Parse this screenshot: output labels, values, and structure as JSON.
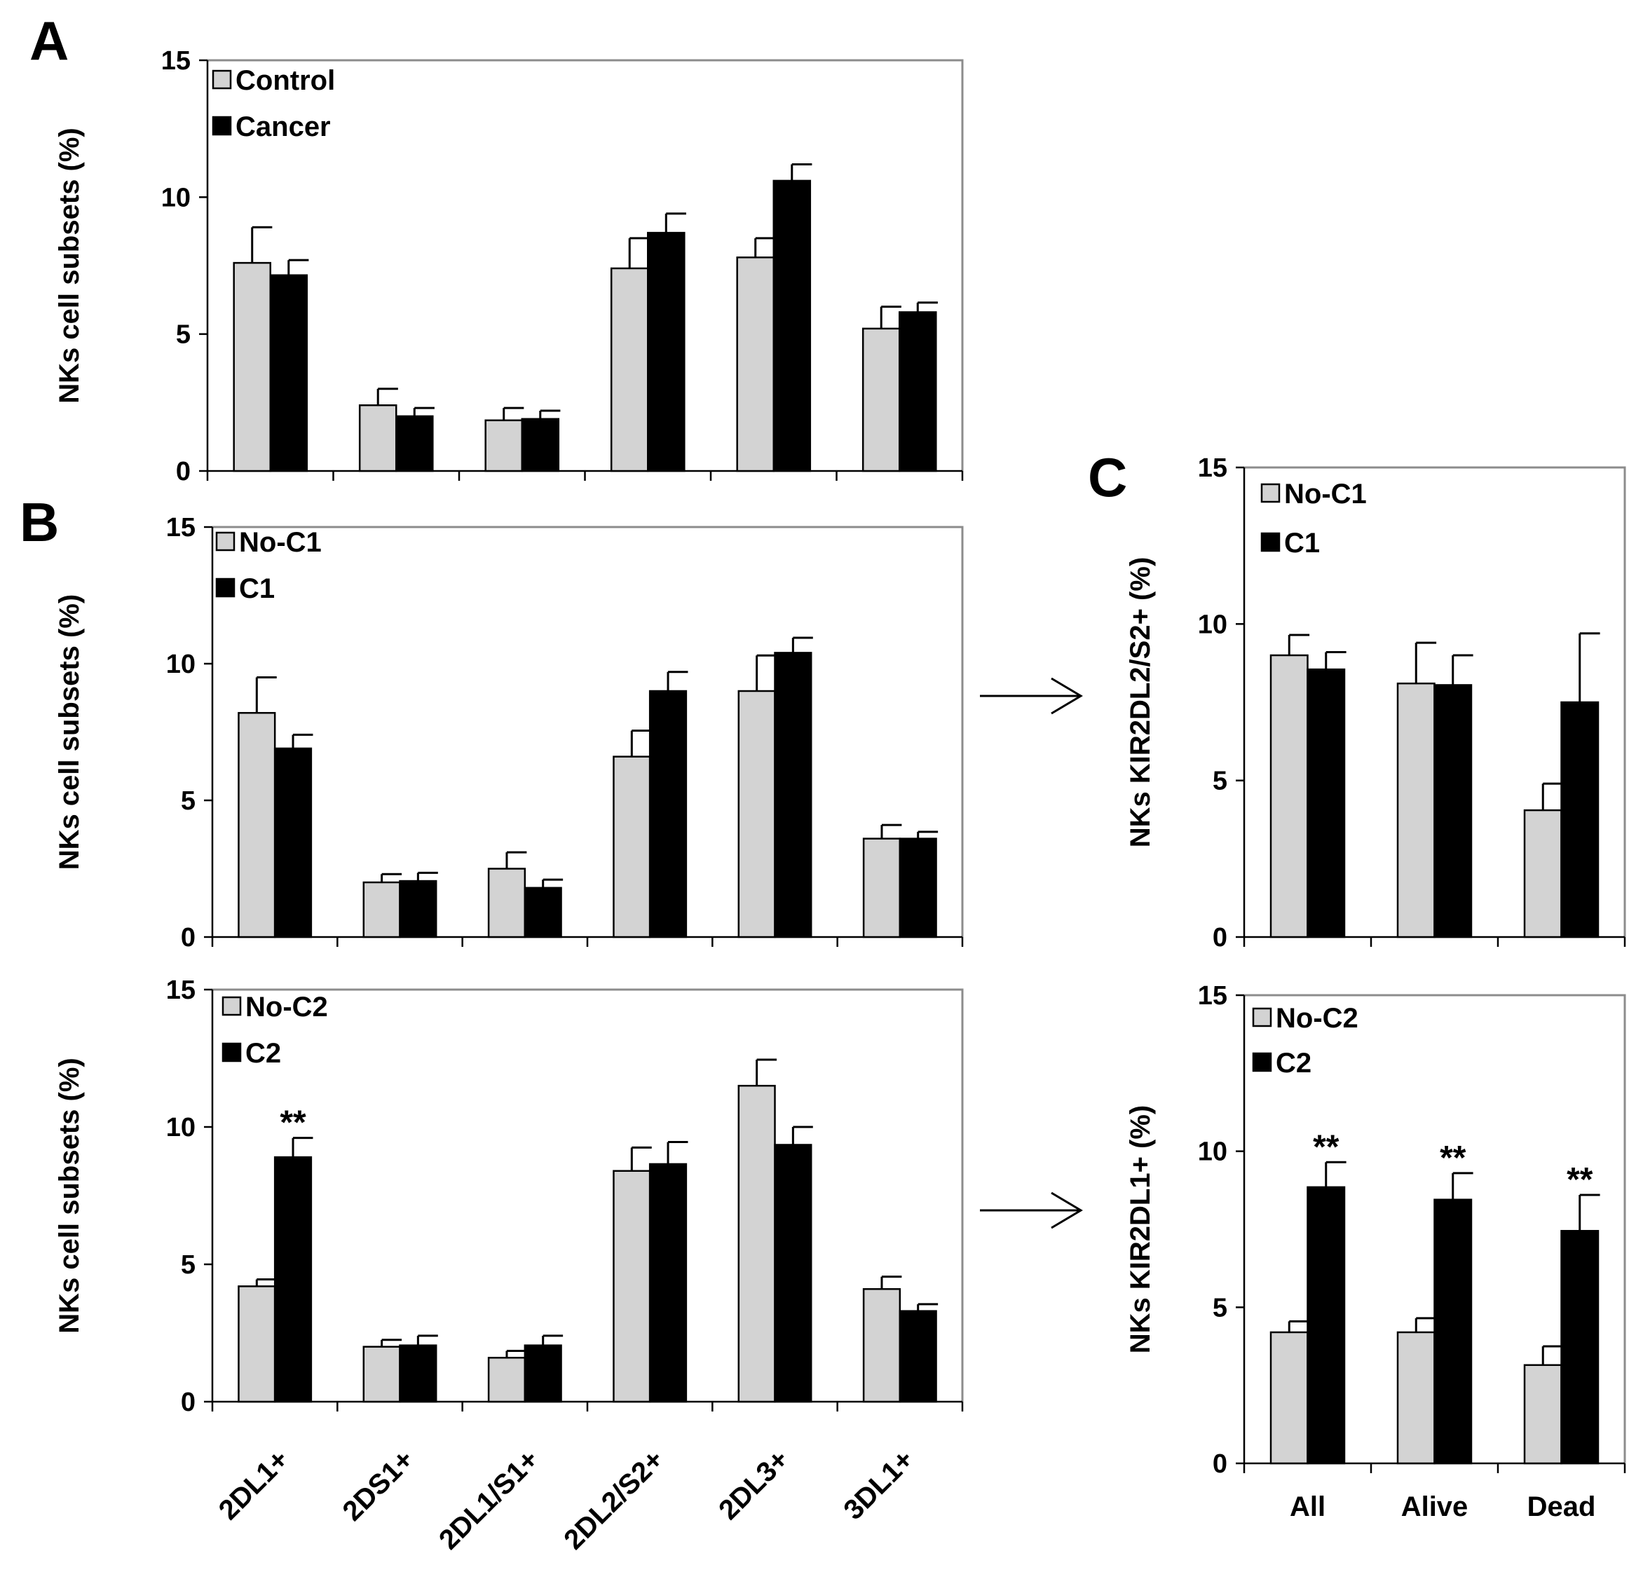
{
  "figure": {
    "panels": [
      {
        "id": "A",
        "label": "A"
      },
      {
        "id": "B",
        "label": "B"
      },
      {
        "id": "C",
        "label": "C"
      }
    ]
  },
  "chart_data": [
    {
      "id": "A",
      "type": "bar",
      "ylabel": "NKs cell subsets (%)",
      "ylim": [
        0,
        15
      ],
      "yticks": [
        0,
        5,
        10,
        15
      ],
      "categories": [
        "2DL1+",
        "2DS1+",
        "2DL1/S1+",
        "2DL2/S2+",
        "2DL3+",
        "3DL1+"
      ],
      "show_category_labels": false,
      "legend_position": "top-left",
      "series": [
        {
          "name": "Control",
          "color": "#d3d3d3",
          "values": [
            7.6,
            2.4,
            1.85,
            7.4,
            7.8,
            5.2
          ],
          "errors": [
            1.3,
            0.6,
            0.45,
            1.1,
            0.7,
            0.8
          ]
        },
        {
          "name": "Cancer",
          "color": "#000000",
          "values": [
            7.15,
            2.0,
            1.9,
            8.7,
            10.6,
            5.8
          ],
          "errors": [
            0.55,
            0.3,
            0.3,
            0.7,
            0.6,
            0.35
          ]
        }
      ],
      "annotations": []
    },
    {
      "id": "B-top",
      "type": "bar",
      "ylabel": "NKs cell subsets (%)",
      "ylim": [
        0,
        15
      ],
      "yticks": [
        0,
        5,
        10,
        15
      ],
      "categories": [
        "2DL1+",
        "2DS1+",
        "2DL1/S1+",
        "2DL2/S2+",
        "2DL3+",
        "3DL1+"
      ],
      "show_category_labels": false,
      "legend_position": "top-left",
      "series": [
        {
          "name": "No-C1",
          "color": "#d3d3d3",
          "values": [
            8.2,
            2.0,
            2.5,
            6.6,
            9.0,
            3.6
          ],
          "errors": [
            1.3,
            0.3,
            0.6,
            0.95,
            1.3,
            0.5
          ]
        },
        {
          "name": "C1",
          "color": "#000000",
          "values": [
            6.9,
            2.05,
            1.8,
            9.0,
            10.4,
            3.6
          ],
          "errors": [
            0.5,
            0.3,
            0.3,
            0.7,
            0.55,
            0.25
          ]
        }
      ],
      "annotations": []
    },
    {
      "id": "B-bottom",
      "type": "bar",
      "ylabel": "NKs cell subsets (%)",
      "ylim": [
        0,
        15
      ],
      "yticks": [
        0,
        5,
        10,
        15
      ],
      "categories": [
        "2DL1+",
        "2DS1+",
        "2DL1/S1+",
        "2DL2/S2+",
        "2DL3+",
        "3DL1+"
      ],
      "show_category_labels": true,
      "legend_position": "top-left",
      "series": [
        {
          "name": "No-C2",
          "color": "#d3d3d3",
          "values": [
            4.2,
            2.0,
            1.6,
            8.4,
            11.5,
            4.1
          ],
          "errors": [
            0.25,
            0.25,
            0.25,
            0.85,
            0.95,
            0.45
          ]
        },
        {
          "name": "C2",
          "color": "#000000",
          "values": [
            8.9,
            2.05,
            2.05,
            8.65,
            9.35,
            3.3
          ],
          "errors": [
            0.7,
            0.35,
            0.35,
            0.8,
            0.65,
            0.25
          ]
        }
      ],
      "annotations": [
        {
          "category_index": 0,
          "text": "**"
        }
      ]
    },
    {
      "id": "C-top",
      "type": "bar",
      "ylabel": "NKs KIR2DL2/S2+ (%)",
      "ylim": [
        0,
        15
      ],
      "yticks": [
        0,
        5,
        10,
        15
      ],
      "categories": [
        "All",
        "Alive",
        "Dead"
      ],
      "show_category_labels": false,
      "legend_position": "top-left",
      "series": [
        {
          "name": "No-C1",
          "color": "#d3d3d3",
          "values": [
            9.0,
            8.1,
            4.05
          ],
          "errors": [
            0.65,
            1.3,
            0.85
          ]
        },
        {
          "name": "C1",
          "color": "#000000",
          "values": [
            8.55,
            8.05,
            7.5
          ],
          "errors": [
            0.55,
            0.95,
            2.2
          ]
        }
      ],
      "annotations": []
    },
    {
      "id": "C-bottom",
      "type": "bar",
      "ylabel": "NKs KIR2DL1+ (%)",
      "ylim": [
        0,
        15
      ],
      "yticks": [
        0,
        5,
        10,
        15
      ],
      "categories": [
        "All",
        "Alive",
        "Dead"
      ],
      "show_category_labels": true,
      "legend_position": "top-left",
      "series": [
        {
          "name": "No-C2",
          "color": "#d3d3d3",
          "values": [
            4.2,
            4.2,
            3.15
          ],
          "errors": [
            0.35,
            0.45,
            0.6
          ]
        },
        {
          "name": "C2",
          "color": "#000000",
          "values": [
            8.85,
            8.45,
            7.45
          ],
          "errors": [
            0.8,
            0.85,
            1.15
          ]
        }
      ],
      "annotations": [
        {
          "category_index": 0,
          "text": "**"
        },
        {
          "category_index": 1,
          "text": "**"
        },
        {
          "category_index": 2,
          "text": "**"
        }
      ]
    }
  ]
}
